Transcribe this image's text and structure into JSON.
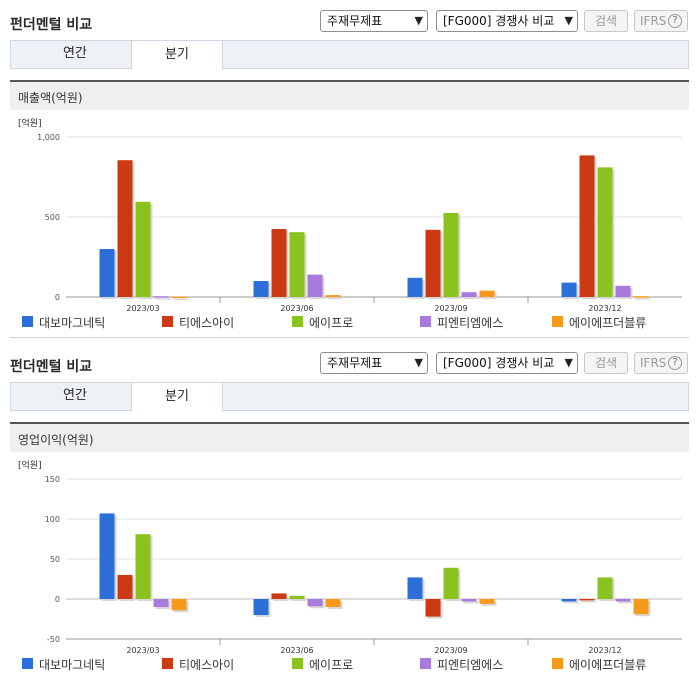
{
  "panels": [
    {
      "title": "펀더멘털 비교",
      "select_statement": "주재무제표",
      "select_compare": "[FG000] 경쟁사 비교",
      "search_label": "검색",
      "ifrs_label": "IFRS",
      "help_glyph": "?",
      "tabs": [
        "연간",
        "분기"
      ],
      "active_tab": "분기",
      "section_title": "매출액(억원)"
    },
    {
      "title": "펀더멘털 비교",
      "select_statement": "주재무제표",
      "select_compare": "[FG000] 경쟁사 비교",
      "search_label": "검색",
      "ifrs_label": "IFRS",
      "help_glyph": "?",
      "tabs": [
        "연간",
        "분기"
      ],
      "active_tab": "분기",
      "section_title": "영업이익(억원)"
    }
  ],
  "colors": {
    "series": [
      "#2c6fd8",
      "#cc3a14",
      "#8ac21e",
      "#a77adb",
      "#f59a1a"
    ],
    "grid": "#e2e2e2",
    "axis": "#999999"
  },
  "chart_data": [
    {
      "type": "bar",
      "unit_label": "[억원]",
      "categories": [
        "2023/03",
        "2023/06",
        "2023/09",
        "2023/12"
      ],
      "ylim": [
        0,
        1000
      ],
      "yticks": [
        0,
        500,
        1000
      ],
      "ytick_labels": [
        "0",
        "500",
        "1,000"
      ],
      "grid": true,
      "legend_position": "bottom",
      "series": [
        {
          "name": "대보마그네틱",
          "values": [
            300,
            100,
            120,
            90
          ]
        },
        {
          "name": "티에스아이",
          "values": [
            855,
            425,
            420,
            885
          ]
        },
        {
          "name": "에이프로",
          "values": [
            595,
            405,
            525,
            810
          ]
        },
        {
          "name": "피엔티엠에스",
          "values": [
            5,
            140,
            30,
            70
          ]
        },
        {
          "name": "에이에프더블류",
          "values": [
            3,
            12,
            40,
            5
          ]
        }
      ]
    },
    {
      "type": "bar",
      "unit_label": "[억원]",
      "categories": [
        "2023/03",
        "2023/06",
        "2023/09",
        "2023/12"
      ],
      "ylim": [
        -50,
        150
      ],
      "yticks": [
        -50,
        0,
        50,
        100,
        150
      ],
      "ytick_labels": [
        "-50",
        "0",
        "50",
        "100",
        "150"
      ],
      "grid": true,
      "legend_position": "bottom",
      "series": [
        {
          "name": "대보마그네틱",
          "values": [
            107,
            -20,
            27,
            -3
          ]
        },
        {
          "name": "티에스아이",
          "values": [
            30,
            7,
            -22,
            0
          ]
        },
        {
          "name": "에이프로",
          "values": [
            81,
            4,
            39,
            27
          ]
        },
        {
          "name": "피엔티엠에스",
          "values": [
            -10,
            -9,
            -3,
            -3
          ]
        },
        {
          "name": "에이에프더블류",
          "values": [
            -14,
            -10,
            -6,
            -19
          ]
        }
      ]
    }
  ]
}
